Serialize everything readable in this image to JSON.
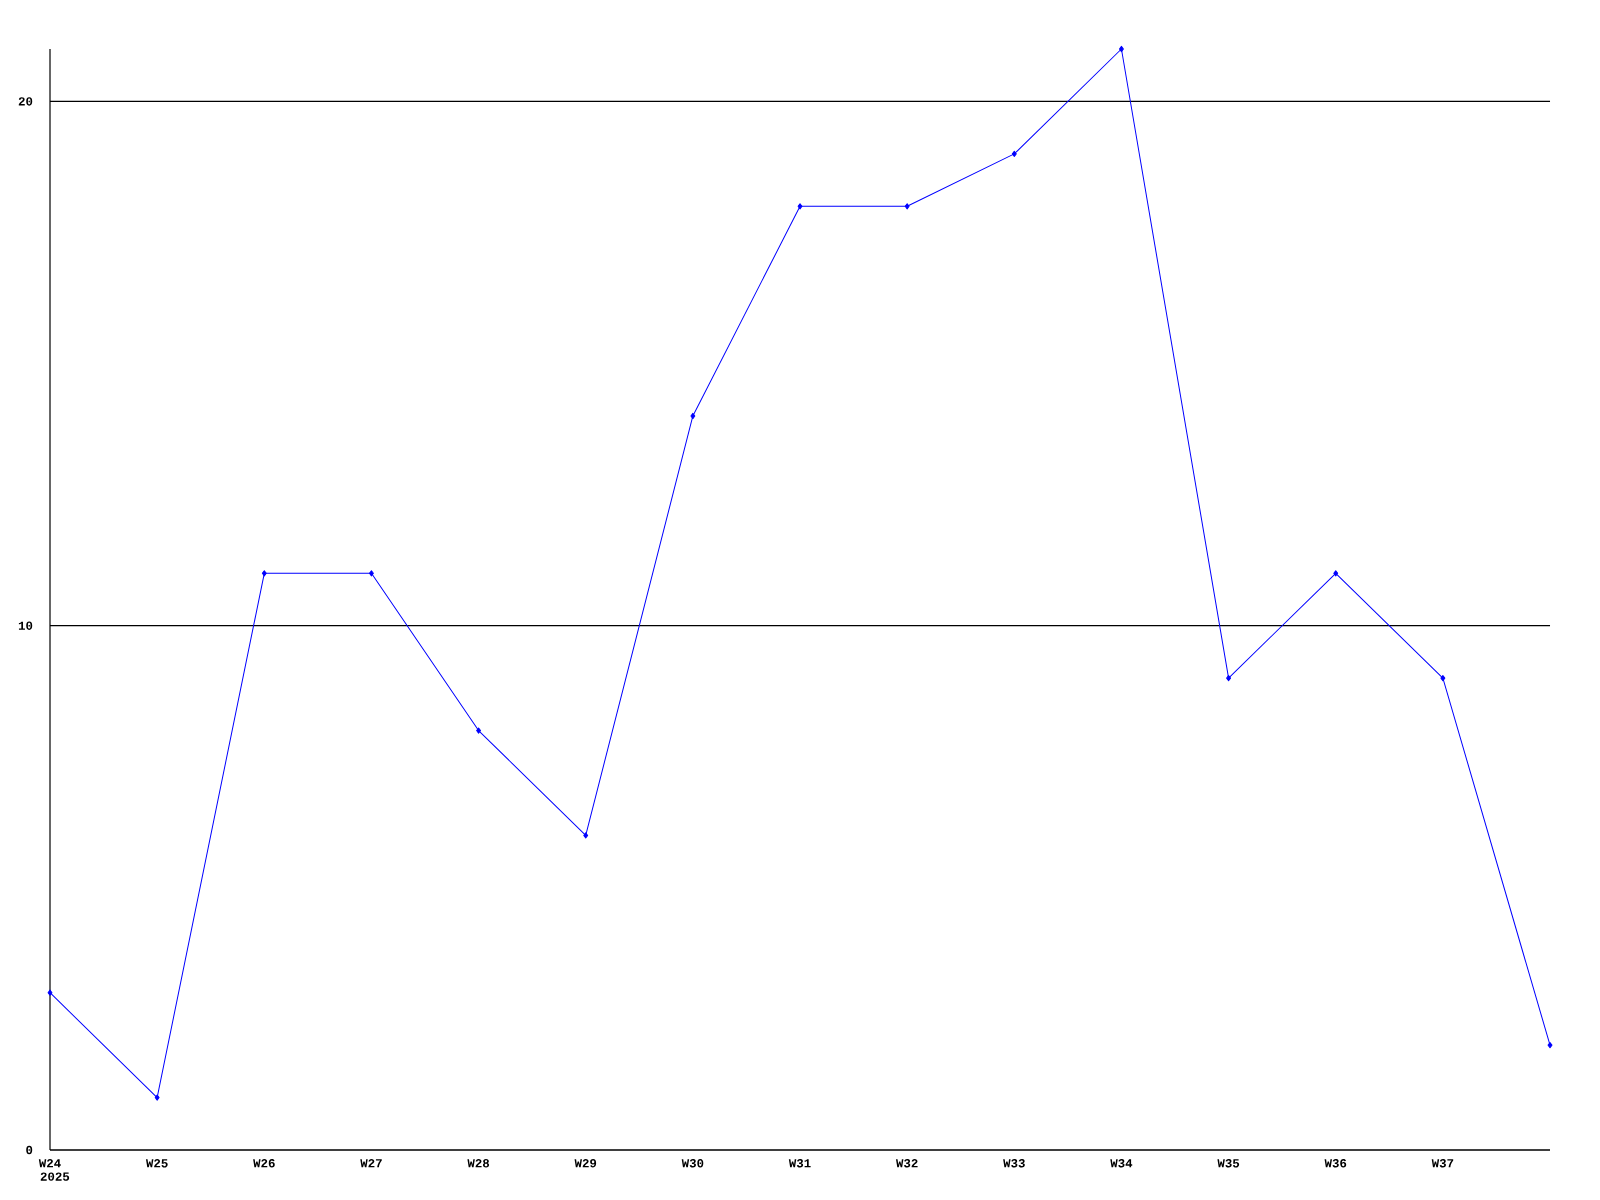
{
  "chart_data": {
    "type": "line",
    "categories": [
      "W24",
      "W25",
      "W26",
      "W27",
      "W28",
      "W29",
      "W30",
      "W31",
      "W32",
      "W33",
      "W34",
      "W35",
      "W36",
      "W37",
      null
    ],
    "values": [
      3,
      1,
      11,
      11,
      8,
      6,
      14,
      18,
      18,
      19,
      21,
      9,
      11,
      9,
      2
    ],
    "color": "#0000ff",
    "marker": "diamond",
    "line_style": "solid",
    "ylim": [
      0,
      21
    ],
    "yticks": [
      0,
      10,
      20
    ],
    "grid": "y",
    "annotations": [
      "2025"
    ]
  }
}
